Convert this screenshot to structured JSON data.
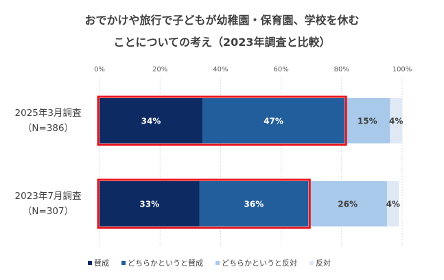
{
  "chart_data": {
    "type": "bar",
    "orientation": "horizontal",
    "stacked": true,
    "title": [
      "おでかけや旅行で子どもが幼稚園・保育園、学校を休む",
      "ことについての考え（2023年調査と比較）"
    ],
    "categories": [
      {
        "line1": "2025年3月調査",
        "line2": "（N=386）"
      },
      {
        "line1": "2023年7月調査",
        "line2": "（N=307）"
      }
    ],
    "series": [
      {
        "name": "賛成",
        "color": "#0d2a62",
        "label_color": "#ffffff",
        "values": [
          34,
          33
        ]
      },
      {
        "name": "どちらかというと賛成",
        "color": "#225e9b",
        "label_color": "#ffffff",
        "values": [
          47,
          36
        ]
      },
      {
        "name": "どちらかというと反対",
        "color": "#a9c9ea",
        "label_color": "#404040",
        "values": [
          15,
          26
        ]
      },
      {
        "name": "反対",
        "color": "#dfe9f6",
        "label_color": "#404040",
        "values": [
          4,
          4
        ]
      }
    ],
    "data_labels": [
      [
        "34%",
        "47%",
        "15%",
        "4%"
      ],
      [
        "33%",
        "36%",
        "26%",
        "4%"
      ]
    ],
    "x_ticks": [
      "0%",
      "20%",
      "40%",
      "60%",
      "80%",
      "100%"
    ],
    "xlim": [
      0,
      100
    ],
    "grid": true,
    "legend_position": "bottom",
    "highlight_color": "#e8141c"
  }
}
